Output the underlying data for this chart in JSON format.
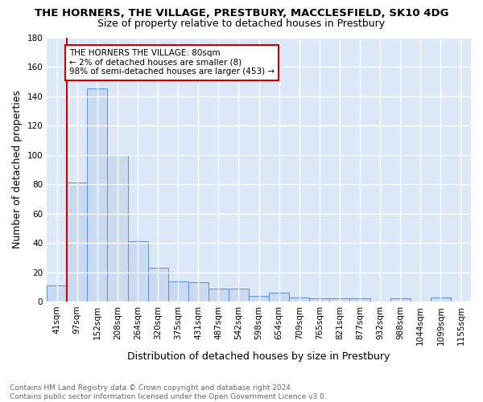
{
  "title": "THE HORNERS, THE VILLAGE, PRESTBURY, MACCLESFIELD, SK10 4DG",
  "subtitle": "Size of property relative to detached houses in Prestbury",
  "xlabel": "Distribution of detached houses by size in Prestbury",
  "ylabel": "Number of detached properties",
  "categories": [
    "41sqm",
    "97sqm",
    "152sqm",
    "208sqm",
    "264sqm",
    "320sqm",
    "375sqm",
    "431sqm",
    "487sqm",
    "542sqm",
    "598sqm",
    "654sqm",
    "709sqm",
    "765sqm",
    "821sqm",
    "877sqm",
    "932sqm",
    "988sqm",
    "1044sqm",
    "1099sqm",
    "1155sqm"
  ],
  "values": [
    11,
    81,
    145,
    100,
    41,
    23,
    14,
    13,
    9,
    9,
    4,
    6,
    3,
    2,
    2,
    2,
    0,
    2,
    0,
    3,
    0
  ],
  "bar_color": "#c9d9ef",
  "bar_edge_color": "#5b8fd4",
  "ylim": [
    0,
    180
  ],
  "yticks": [
    0,
    20,
    40,
    60,
    80,
    100,
    120,
    140,
    160,
    180
  ],
  "annotation_box_text": "THE HORNERS THE VILLAGE: 80sqm\n← 2% of detached houses are smaller (8)\n98% of semi-detached houses are larger (453) →",
  "annotation_box_color": "#ffffff",
  "annotation_box_edge_color": "#cc0000",
  "red_line_x": 0.5,
  "footnote": "Contains HM Land Registry data © Crown copyright and database right 2024.\nContains public sector information licensed under the Open Government Licence v3.0.",
  "bg_color": "#dce8f8",
  "grid_color": "#ffffff",
  "fig_bg_color": "#ffffff",
  "title_fontsize": 9.5,
  "subtitle_fontsize": 9,
  "ylabel_fontsize": 9,
  "xlabel_fontsize": 9,
  "tick_fontsize": 7.5,
  "annotation_fontsize": 7.5,
  "footnote_fontsize": 6.5
}
